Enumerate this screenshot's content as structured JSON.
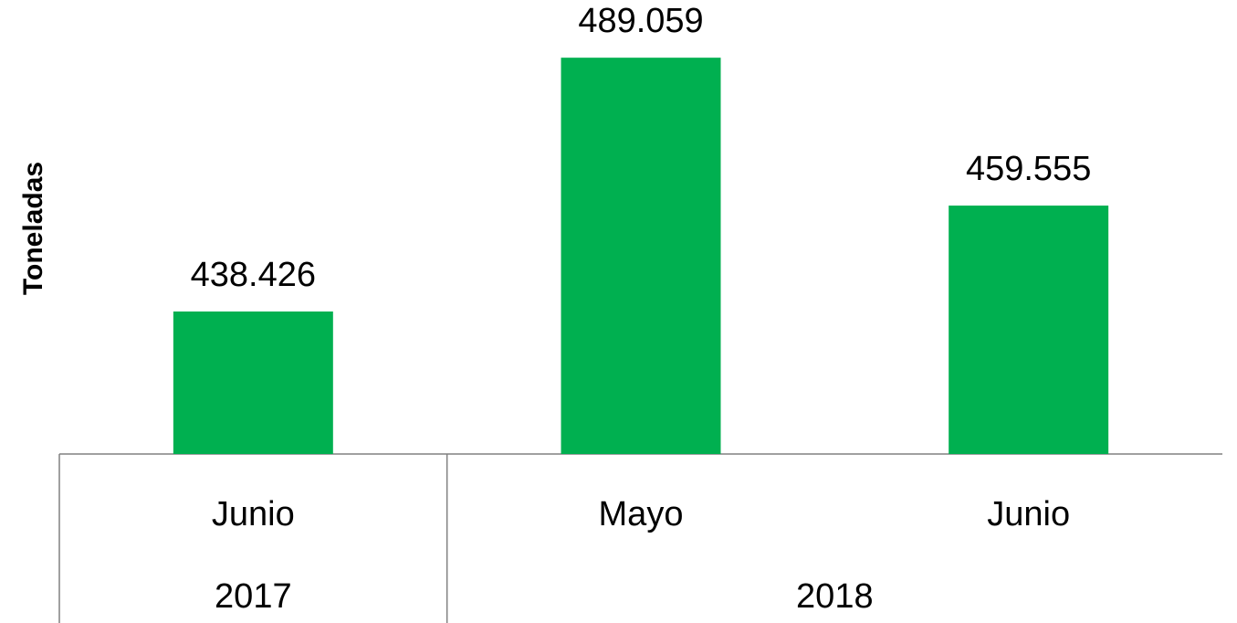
{
  "chart_data": {
    "type": "bar",
    "y_label": "Toneladas",
    "groups": [
      {
        "name": "2017",
        "categories": [
          "Junio"
        ]
      },
      {
        "name": "2018",
        "categories": [
          "Mayo",
          "Junio"
        ]
      }
    ],
    "values": [
      438426,
      489059,
      459555
    ],
    "value_labels": [
      "438.426",
      "489.059",
      "459.555"
    ],
    "color": "#00b050",
    "ylim": [
      410000,
      490000
    ]
  }
}
